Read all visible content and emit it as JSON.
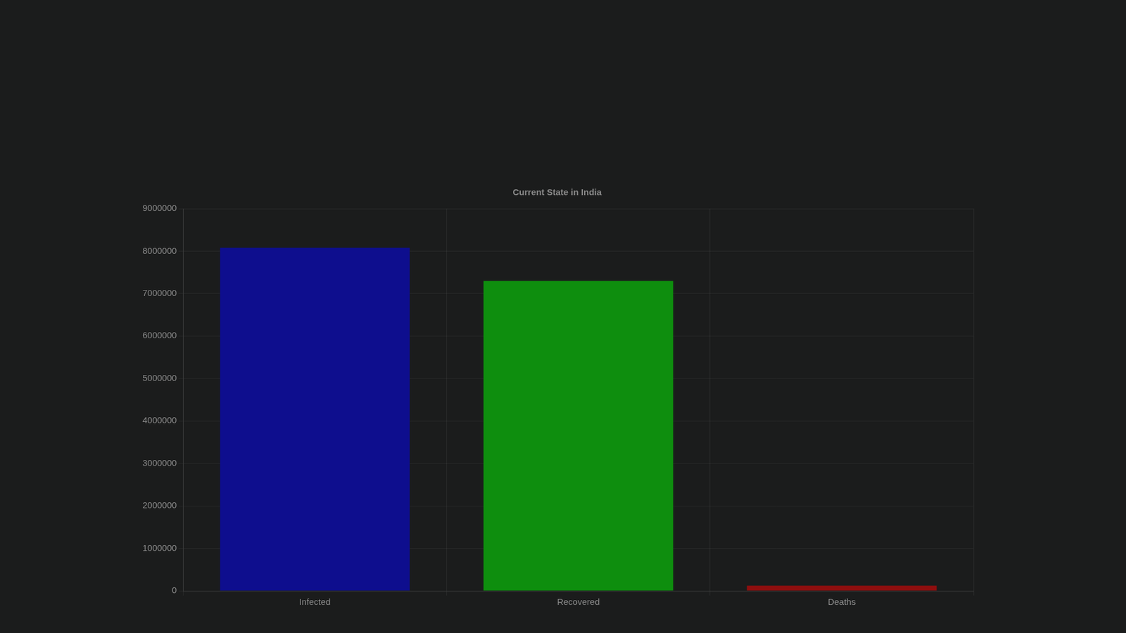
{
  "chart_data": {
    "type": "bar",
    "title": "Current State in India",
    "categories": [
      "Infected",
      "Recovered",
      "Deaths"
    ],
    "values": [
      8080000,
      7300000,
      121000
    ],
    "colors": [
      "#0e0e8e",
      "#0e8e0e",
      "#8e0e0e"
    ],
    "ylim": [
      0,
      9000000
    ],
    "yticks": [
      0,
      1000000,
      2000000,
      3000000,
      4000000,
      5000000,
      6000000,
      7000000,
      8000000,
      9000000
    ],
    "grid": true
  }
}
